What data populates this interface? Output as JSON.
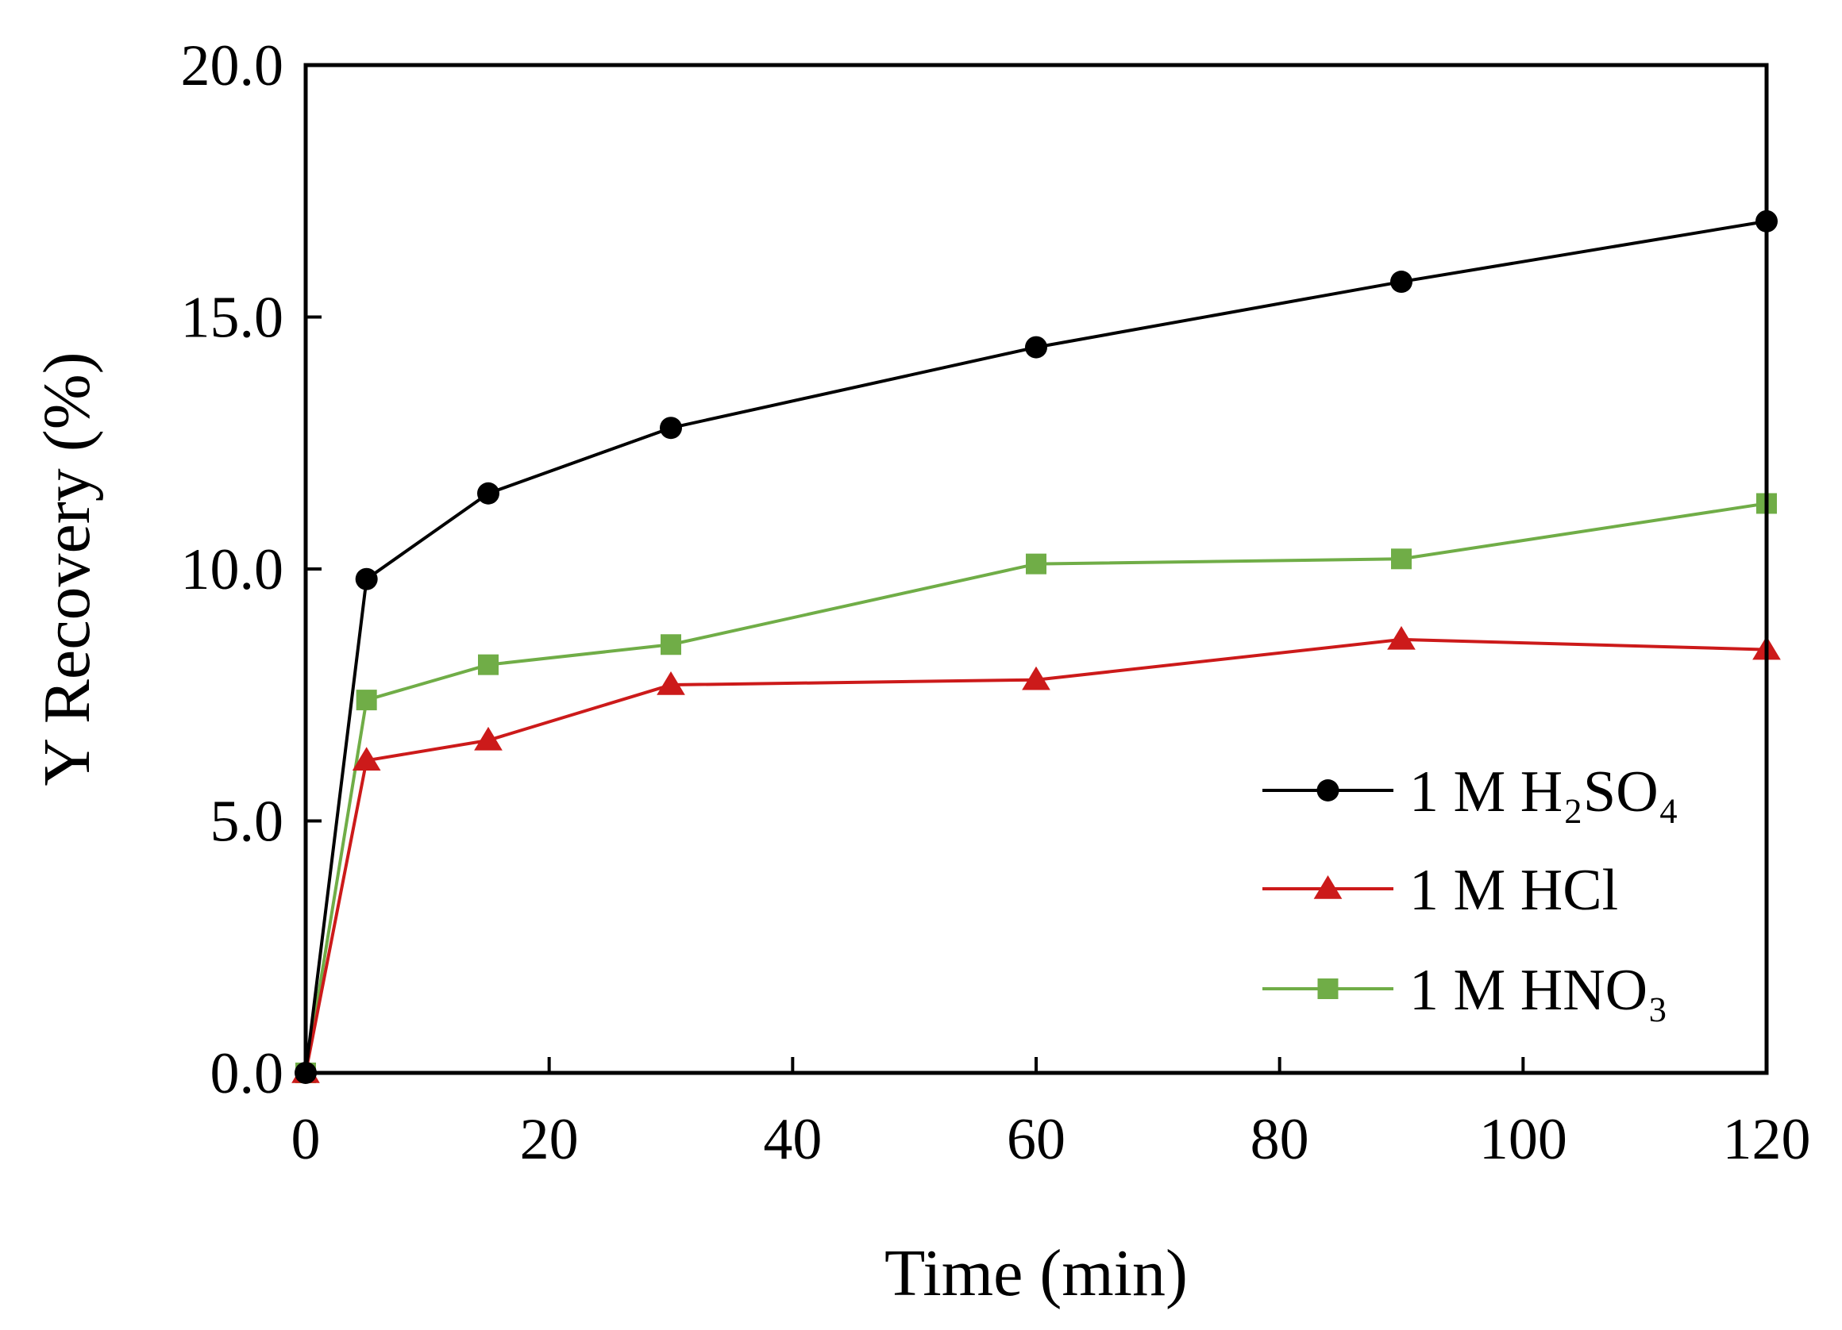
{
  "chart_data": {
    "type": "line",
    "title": "",
    "xlabel": "Time (min)",
    "ylabel": "Y Recovery (%)",
    "xlim": [
      0,
      120
    ],
    "ylim": [
      0,
      20
    ],
    "xticks": [
      0,
      20,
      40,
      60,
      80,
      100,
      120
    ],
    "xtick_labels": [
      "0",
      "20",
      "40",
      "60",
      "80",
      "100",
      "120"
    ],
    "yticks": [
      0,
      5,
      10,
      15,
      20
    ],
    "ytick_labels": [
      "0.0",
      "5.0",
      "10.0",
      "15.0",
      "20.0"
    ],
    "grid": false,
    "legend_position": "bottom-right",
    "x": [
      0,
      5,
      15,
      30,
      60,
      90,
      120
    ],
    "series": [
      {
        "name": "1 M H₂SO₄",
        "marker": "circle",
        "color": "#000000",
        "values": [
          0.0,
          9.8,
          11.5,
          12.8,
          14.4,
          15.7,
          16.9
        ]
      },
      {
        "name": "1 M HCl",
        "marker": "triangle",
        "color": "#cc1a1a",
        "values": [
          0.0,
          6.2,
          6.6,
          7.7,
          7.8,
          8.6,
          8.4
        ]
      },
      {
        "name": "1 M HNO₃",
        "marker": "square",
        "color": "#70ad47",
        "values": [
          0.0,
          7.4,
          8.1,
          8.5,
          10.1,
          10.2,
          11.3
        ]
      }
    ]
  }
}
